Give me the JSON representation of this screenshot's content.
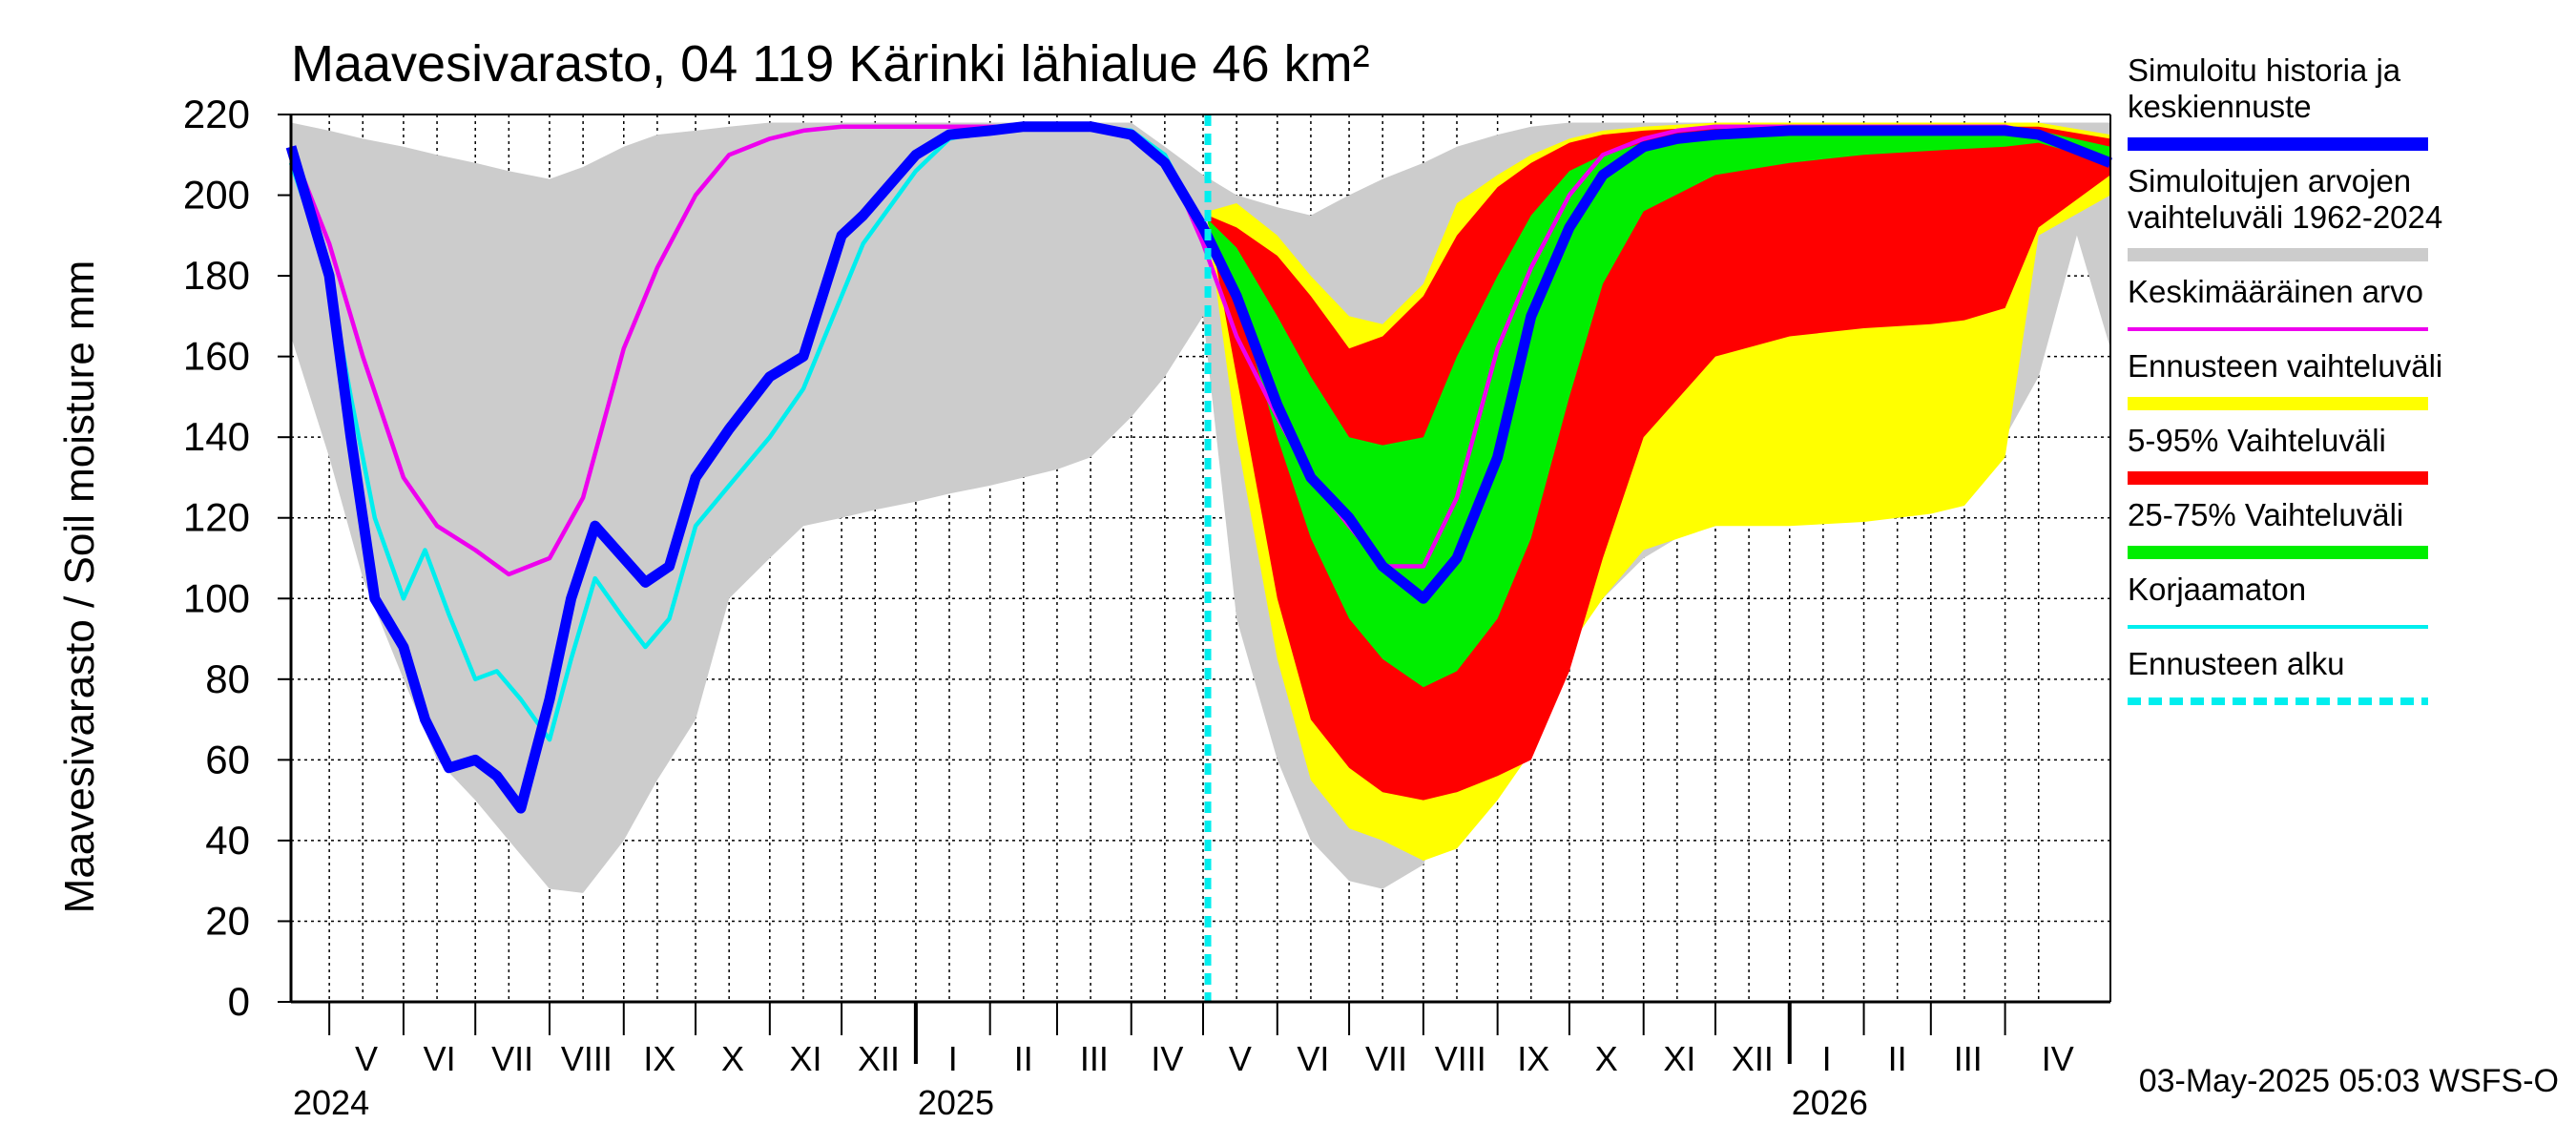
{
  "chart_data": {
    "type": "area",
    "title": "Maavesivarasto, 04 119 Kärinki lähialue 46 km²",
    "ylabel": "Maavesivarasto / Soil moisture   mm",
    "xlabel": "",
    "ylim": [
      0,
      220
    ],
    "yticks": [
      0,
      20,
      40,
      60,
      80,
      100,
      120,
      140,
      160,
      180,
      200,
      220
    ],
    "xlim": [
      "2024-04-15",
      "2026-05-15"
    ],
    "grid": true,
    "legend_placement": "right",
    "timestamp": "03-May-2025 05:03 WSFS-O",
    "forecast_start": "2025-05-03",
    "months": [
      {
        "label": "V",
        "start": "2024-05-01"
      },
      {
        "label": "VI",
        "start": "2024-06-01"
      },
      {
        "label": "VII",
        "start": "2024-07-01"
      },
      {
        "label": "VIII",
        "start": "2024-08-01"
      },
      {
        "label": "IX",
        "start": "2024-09-01"
      },
      {
        "label": "X",
        "start": "2024-10-01"
      },
      {
        "label": "XI",
        "start": "2024-11-01"
      },
      {
        "label": "XII",
        "start": "2024-12-01"
      },
      {
        "label": "I",
        "start": "2025-01-01"
      },
      {
        "label": "II",
        "start": "2025-02-01"
      },
      {
        "label": "III",
        "start": "2025-03-01"
      },
      {
        "label": "IV",
        "start": "2025-04-01"
      },
      {
        "label": "V",
        "start": "2025-05-01"
      },
      {
        "label": "VI",
        "start": "2025-06-01"
      },
      {
        "label": "VII",
        "start": "2025-07-01"
      },
      {
        "label": "VIII",
        "start": "2025-08-01"
      },
      {
        "label": "IX",
        "start": "2025-09-01"
      },
      {
        "label": "X",
        "start": "2025-10-01"
      },
      {
        "label": "XI",
        "start": "2025-11-01"
      },
      {
        "label": "XII",
        "start": "2025-12-01"
      },
      {
        "label": "I",
        "start": "2026-01-01"
      },
      {
        "label": "II",
        "start": "2026-02-01"
      },
      {
        "label": "III",
        "start": "2026-03-01"
      },
      {
        "label": "IV",
        "start": "2026-04-01"
      }
    ],
    "years": [
      {
        "label": "2024",
        "start": "2024-04-15"
      },
      {
        "label": "2025",
        "start": "2025-01-01"
      },
      {
        "label": "2026",
        "start": "2026-01-01"
      }
    ],
    "legend": [
      {
        "label": "Simuloitu historia ja keskiennuste",
        "lines": [
          "Simuloitu historia ja",
          "keskiennuste"
        ],
        "color": "#0000ff",
        "style": "thick"
      },
      {
        "label": "Simuloitujen arvojen vaihteluväli 1962-2024",
        "lines": [
          "Simuloitujen arvojen",
          "vaihteluväli 1962-2024"
        ],
        "color": "#cccccc",
        "style": "band"
      },
      {
        "label": "Keskimääräinen arvo",
        "lines": [
          "Keskimääräinen arvo"
        ],
        "color": "#ee00ee",
        "style": "line"
      },
      {
        "label": "Ennusteen vaihteluväli",
        "lines": [
          "Ennusteen vaihteluväli"
        ],
        "color": "#ffff00",
        "style": "band"
      },
      {
        "label": "5-95% Vaihteluväli",
        "lines": [
          "5-95% Vaihteluväli"
        ],
        "color": "#ff0000",
        "style": "band"
      },
      {
        "label": "25-75% Vaihteluväli",
        "lines": [
          "25-75% Vaihteluväli"
        ],
        "color": "#00ee00",
        "style": "band"
      },
      {
        "label": "Korjaamaton",
        "lines": [
          "Korjaamaton"
        ],
        "color": "#00eeee",
        "style": "line"
      },
      {
        "label": "Ennusteen alku",
        "lines": [
          "Ennusteen alku"
        ],
        "color": "#00eeee",
        "style": "dashed"
      }
    ],
    "series": [
      {
        "name": "Simuloitujen arvojen vaihteluväli 1962-2024",
        "kind": "band",
        "color": "#cccccc",
        "x": [
          "2024-04-15",
          "2024-05-01",
          "2024-05-15",
          "2024-06-01",
          "2024-06-15",
          "2024-07-01",
          "2024-07-15",
          "2024-08-01",
          "2024-08-15",
          "2024-09-01",
          "2024-09-15",
          "2024-10-01",
          "2024-10-15",
          "2024-11-01",
          "2024-11-15",
          "2024-12-01",
          "2024-12-15",
          "2025-01-01",
          "2025-01-15",
          "2025-02-01",
          "2025-02-15",
          "2025-03-01",
          "2025-03-15",
          "2025-04-01",
          "2025-04-15",
          "2025-05-01",
          "2025-05-15",
          "2025-06-01",
          "2025-06-15",
          "2025-07-01",
          "2025-07-15",
          "2025-08-01",
          "2025-08-15",
          "2025-09-01",
          "2025-09-15",
          "2025-10-01",
          "2025-10-15",
          "2025-11-01",
          "2025-11-15",
          "2025-12-01",
          "2025-12-15",
          "2026-01-01",
          "2026-01-15",
          "2026-02-01",
          "2026-02-15",
          "2026-03-01",
          "2026-03-15",
          "2026-04-01",
          "2026-04-15",
          "2026-05-01",
          "2026-05-15"
        ],
        "lower": [
          165,
          135,
          105,
          80,
          60,
          50,
          40,
          28,
          27,
          40,
          55,
          70,
          100,
          110,
          118,
          120,
          122,
          124,
          126,
          128,
          130,
          132,
          135,
          145,
          155,
          170,
          95,
          60,
          40,
          30,
          28,
          34,
          55,
          68,
          85,
          95,
          100,
          110,
          115,
          118,
          120,
          120,
          120,
          121,
          122,
          122,
          125,
          140,
          155,
          190,
          162
        ],
        "upper": [
          218,
          216,
          214,
          212,
          210,
          208,
          206,
          204,
          207,
          212,
          215,
          216,
          217,
          218,
          218,
          218,
          218,
          218,
          218,
          218,
          218,
          218,
          218,
          218,
          212,
          205,
          200,
          197,
          195,
          200,
          204,
          208,
          212,
          215,
          217,
          218,
          218,
          218,
          218,
          218,
          218,
          218,
          218,
          218,
          218,
          218,
          218,
          218,
          218,
          218,
          218
        ]
      },
      {
        "name": "Ennusteen vaihteluväli",
        "kind": "band",
        "color": "#ffff00",
        "x": [
          "2025-05-03",
          "2025-05-15",
          "2025-06-01",
          "2025-06-15",
          "2025-07-01",
          "2025-07-15",
          "2025-08-01",
          "2025-08-15",
          "2025-09-01",
          "2025-09-15",
          "2025-10-01",
          "2025-10-15",
          "2025-11-01",
          "2025-12-01",
          "2026-01-01",
          "2026-02-01",
          "2026-03-01",
          "2026-03-15",
          "2026-04-01",
          "2026-04-15",
          "2026-05-15"
        ],
        "lower": [
          192,
          140,
          85,
          55,
          43,
          40,
          35,
          38,
          50,
          62,
          88,
          100,
          112,
          118,
          118,
          119,
          121,
          123,
          135,
          190,
          200
        ],
        "upper": [
          196,
          198,
          190,
          180,
          170,
          168,
          178,
          198,
          205,
          210,
          214,
          216,
          217,
          218,
          218,
          218,
          218,
          218,
          218,
          218,
          215
        ]
      },
      {
        "name": "5-95% Vaihteluväli",
        "kind": "band",
        "color": "#ff0000",
        "x": [
          "2025-05-03",
          "2025-05-15",
          "2025-06-01",
          "2025-06-15",
          "2025-07-01",
          "2025-07-15",
          "2025-08-01",
          "2025-08-15",
          "2025-09-01",
          "2025-09-15",
          "2025-10-01",
          "2025-10-15",
          "2025-11-01",
          "2025-12-01",
          "2026-01-01",
          "2026-02-01",
          "2026-03-01",
          "2026-03-15",
          "2026-04-01",
          "2026-04-15",
          "2026-05-15"
        ],
        "lower": [
          194,
          155,
          100,
          70,
          58,
          52,
          50,
          52,
          56,
          60,
          82,
          110,
          140,
          160,
          165,
          167,
          168,
          169,
          172,
          192,
          205
        ],
        "upper": [
          195,
          192,
          185,
          175,
          162,
          165,
          175,
          190,
          202,
          208,
          213,
          215,
          216,
          217,
          217,
          217,
          217,
          217,
          217,
          217,
          214
        ]
      },
      {
        "name": "25-75% Vaihteluväli",
        "kind": "band",
        "color": "#00ee00",
        "x": [
          "2025-05-03",
          "2025-05-15",
          "2025-06-01",
          "2025-06-15",
          "2025-07-01",
          "2025-07-15",
          "2025-08-01",
          "2025-08-15",
          "2025-09-01",
          "2025-09-15",
          "2025-10-01",
          "2025-10-15",
          "2025-11-01",
          "2025-12-01",
          "2026-01-01",
          "2026-02-01",
          "2026-03-01",
          "2026-04-01",
          "2026-04-15",
          "2026-05-15"
        ],
        "lower": [
          193,
          175,
          140,
          115,
          95,
          85,
          78,
          82,
          95,
          115,
          150,
          178,
          196,
          205,
          208,
          210,
          211,
          212,
          213,
          208
        ],
        "upper": [
          194,
          187,
          170,
          155,
          140,
          138,
          140,
          160,
          180,
          195,
          206,
          210,
          213,
          215,
          216,
          216,
          216,
          216,
          216,
          212
        ]
      },
      {
        "name": "Keskimääräinen arvo",
        "kind": "line",
        "color": "#ee00ee",
        "x": [
          "2024-04-15",
          "2024-05-01",
          "2024-05-15",
          "2024-06-01",
          "2024-06-15",
          "2024-07-01",
          "2024-07-15",
          "2024-08-01",
          "2024-08-15",
          "2024-09-01",
          "2024-09-15",
          "2024-10-01",
          "2024-10-15",
          "2024-11-01",
          "2024-11-15",
          "2024-12-01",
          "2024-12-15",
          "2025-01-01",
          "2025-01-15",
          "2025-02-01",
          "2025-02-15",
          "2025-03-01",
          "2025-03-15",
          "2025-04-01",
          "2025-04-15",
          "2025-05-01",
          "2025-05-15",
          "2025-06-01",
          "2025-06-15",
          "2025-07-01",
          "2025-07-15",
          "2025-08-01",
          "2025-08-15",
          "2025-09-01",
          "2025-09-15",
          "2025-10-01",
          "2025-10-15",
          "2025-11-01",
          "2025-11-15",
          "2025-12-01",
          "2025-12-15",
          "2026-01-01",
          "2026-02-01",
          "2026-03-01",
          "2026-04-01",
          "2026-04-15",
          "2026-05-15"
        ],
        "y": [
          212,
          188,
          160,
          130,
          118,
          112,
          106,
          110,
          125,
          162,
          182,
          200,
          210,
          214,
          216,
          217,
          217,
          217,
          217,
          217,
          217,
          217,
          217,
          215,
          210,
          188,
          165,
          145,
          130,
          118,
          108,
          108,
          125,
          162,
          182,
          200,
          210,
          214,
          216,
          217,
          217,
          217,
          217,
          217,
          217,
          215,
          208
        ]
      },
      {
        "name": "Korjaamaton",
        "kind": "line",
        "color": "#00eeee",
        "x": [
          "2024-04-15",
          "2024-05-01",
          "2024-05-10",
          "2024-05-20",
          "2024-06-01",
          "2024-06-10",
          "2024-06-20",
          "2024-07-01",
          "2024-07-10",
          "2024-07-20",
          "2024-08-01",
          "2024-08-10",
          "2024-08-20",
          "2024-09-01",
          "2024-09-10",
          "2024-09-20",
          "2024-10-01",
          "2024-10-15",
          "2024-11-01",
          "2024-11-15",
          "2024-12-01",
          "2024-12-10",
          "2025-01-01",
          "2025-01-15",
          "2025-02-01",
          "2025-02-15",
          "2025-03-01",
          "2025-03-15",
          "2025-04-01",
          "2025-04-15",
          "2025-05-01"
        ],
        "y": [
          208,
          180,
          150,
          120,
          100,
          112,
          96,
          80,
          82,
          75,
          65,
          85,
          105,
          95,
          88,
          95,
          118,
          128,
          140,
          152,
          175,
          188,
          206,
          214,
          216,
          217,
          217,
          217,
          216,
          210,
          192
        ]
      },
      {
        "name": "Simuloitu historia ja keskiennuste",
        "kind": "thick",
        "color": "#0000ff",
        "x": [
          "2024-04-15",
          "2024-05-01",
          "2024-05-10",
          "2024-05-20",
          "2024-06-01",
          "2024-06-10",
          "2024-06-20",
          "2024-07-01",
          "2024-07-10",
          "2024-07-20",
          "2024-08-01",
          "2024-08-10",
          "2024-08-20",
          "2024-09-01",
          "2024-09-10",
          "2024-09-20",
          "2024-10-01",
          "2024-10-15",
          "2024-11-01",
          "2024-11-15",
          "2024-12-01",
          "2024-12-10",
          "2025-01-01",
          "2025-01-15",
          "2025-02-01",
          "2025-02-15",
          "2025-03-01",
          "2025-03-15",
          "2025-04-01",
          "2025-04-15",
          "2025-05-01",
          "2025-05-15",
          "2025-06-01",
          "2025-06-15",
          "2025-07-01",
          "2025-07-15",
          "2025-08-01",
          "2025-08-15",
          "2025-09-01",
          "2025-09-15",
          "2025-10-01",
          "2025-10-15",
          "2025-11-01",
          "2025-11-15",
          "2025-12-01",
          "2026-01-01",
          "2026-02-01",
          "2026-03-01",
          "2026-04-01",
          "2026-04-15",
          "2026-05-15"
        ],
        "y": [
          212,
          180,
          140,
          100,
          88,
          70,
          58,
          60,
          56,
          48,
          75,
          100,
          118,
          110,
          104,
          108,
          130,
          142,
          155,
          160,
          190,
          195,
          210,
          215,
          216,
          217,
          217,
          217,
          215,
          208,
          192,
          175,
          148,
          130,
          120,
          108,
          100,
          110,
          135,
          170,
          192,
          205,
          212,
          214,
          215,
          216,
          216,
          216,
          216,
          215,
          208
        ]
      }
    ]
  }
}
